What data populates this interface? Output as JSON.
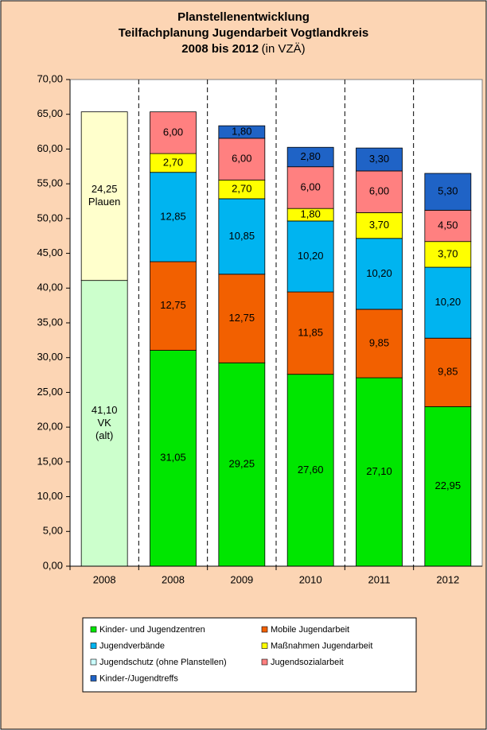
{
  "chart_data": {
    "type": "stacked_bar",
    "title": [
      "Planstellenentwicklung",
      "Teilfachplanung Jugendarbeit Vogtlandkreis",
      "2008 bis 2012"
    ],
    "subtitle": "(in VZÄ)",
    "categories": [
      "2008",
      "2008",
      "2009",
      "2010",
      "2011",
      "2012"
    ],
    "ylim": [
      0,
      70
    ],
    "yticks": [
      {
        "value": 0,
        "label": "0,00"
      },
      {
        "value": 5,
        "label": "5,00"
      },
      {
        "value": 10,
        "label": "10,00"
      },
      {
        "value": 15,
        "label": "15,00"
      },
      {
        "value": 20,
        "label": "20,00"
      },
      {
        "value": 25,
        "label": "25,00"
      },
      {
        "value": 30,
        "label": "30,00"
      },
      {
        "value": 35,
        "label": "35,00"
      },
      {
        "value": 40,
        "label": "40,00"
      },
      {
        "value": 45,
        "label": "45,00"
      },
      {
        "value": 50,
        "label": "50,00"
      },
      {
        "value": 55,
        "label": "55,00"
      },
      {
        "value": 60,
        "label": "60,00"
      },
      {
        "value": 65,
        "label": "65,00"
      },
      {
        "value": 70,
        "label": "70,00"
      }
    ],
    "series": [
      {
        "text": [
          "VK",
          "(alt)"
        ],
        "color": "#ccffcc",
        "values": [
          41.1,
          null,
          null,
          null,
          null,
          null
        ],
        "value_labels": [
          "41,10",
          null,
          null,
          null,
          null,
          null
        ]
      },
      {
        "text": [
          "Plauen"
        ],
        "color": "#ffffcc",
        "values": [
          24.25,
          null,
          null,
          null,
          null,
          null
        ],
        "value_labels": [
          "24,25",
          null,
          null,
          null,
          null,
          null
        ]
      },
      {
        "name": "Kinder- und Jugendzentren",
        "color": "#00e600",
        "values": [
          null,
          31.05,
          29.25,
          27.6,
          27.1,
          22.95
        ],
        "value_labels": [
          null,
          "31,05",
          "29,25",
          "27,60",
          "27,10",
          "22,95"
        ]
      },
      {
        "name": "Mobile Jugendarbeit",
        "color": "#f26000",
        "values": [
          null,
          12.75,
          12.75,
          11.85,
          9.85,
          9.85
        ],
        "value_labels": [
          null,
          "12,75",
          "12,75",
          "11,85",
          "9,85",
          "9,85"
        ]
      },
      {
        "name": "Jugendverbände",
        "color": "#00b4f0",
        "values": [
          null,
          12.85,
          10.85,
          10.2,
          10.2,
          10.2
        ],
        "value_labels": [
          null,
          "12,85",
          "10,85",
          "10,20",
          "10,20",
          "10,20"
        ]
      },
      {
        "name": "Maßnahmen Jugendarbeit",
        "color": "#ffff00",
        "values": [
          null,
          2.7,
          2.7,
          1.8,
          3.7,
          3.7
        ],
        "value_labels": [
          null,
          "2,70",
          "2,70",
          "1,80",
          "3,70",
          "3,70"
        ]
      },
      {
        "name": "Jugendschutz (ohne Planstellen)",
        "color": "#ccffff",
        "values": [
          null,
          null,
          null,
          null,
          null,
          null
        ]
      },
      {
        "name": "Jugendsozialarbeit",
        "color": "#ff8080",
        "values": [
          null,
          6,
          6,
          6,
          6,
          4.5
        ],
        "value_labels": [
          null,
          "6,00",
          "6,00",
          "6,00",
          "6,00",
          "4,50"
        ]
      },
      {
        "name": "Kinder-/Jugendtreffs",
        "color": "#1f63c6",
        "values": [
          null,
          null,
          1.8,
          2.8,
          3.3,
          5.3
        ],
        "value_labels": [
          null,
          null,
          "1,80",
          "2,80",
          "3,30",
          "5,30"
        ]
      }
    ]
  }
}
